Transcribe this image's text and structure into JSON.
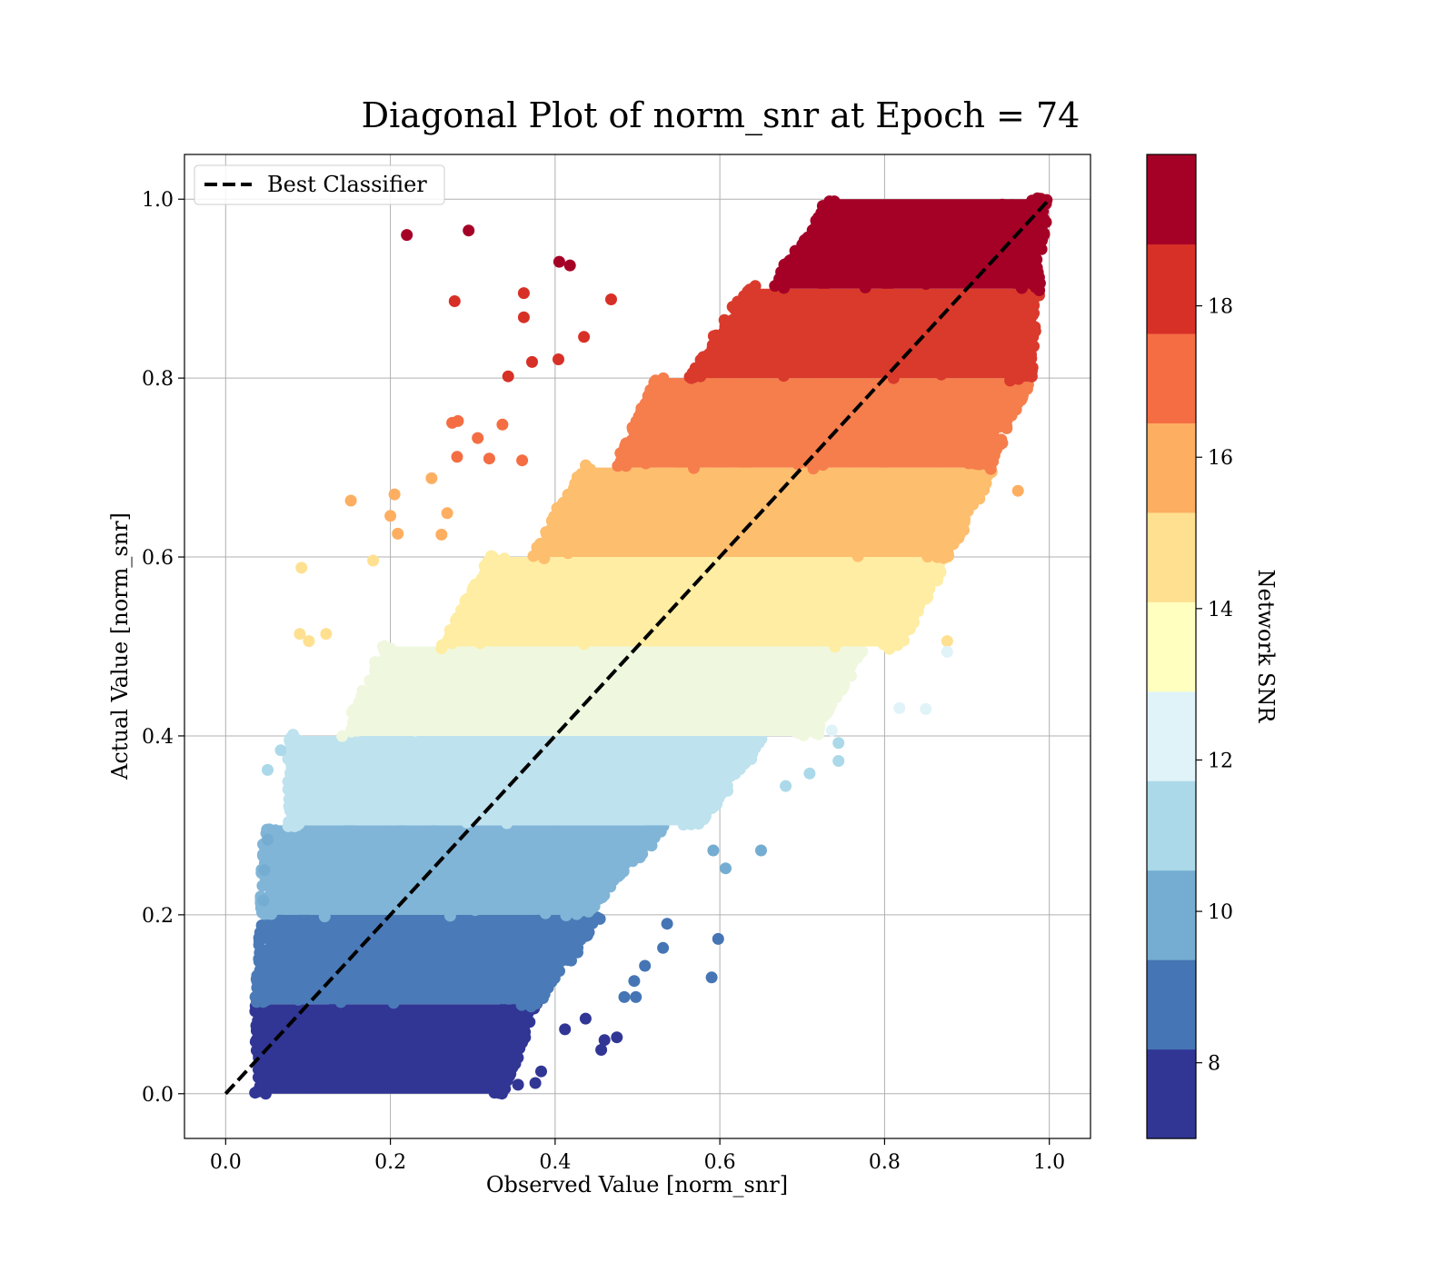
{
  "chart_data": {
    "type": "scatter",
    "title": "Diagonal Plot of norm_snr at Epoch = 74",
    "xlabel": "Observed Value [norm_snr]",
    "ylabel": "Actual Value [norm_snr]",
    "xlim": [
      -0.05,
      1.05
    ],
    "ylim": [
      -0.05,
      1.05
    ],
    "xticks": [
      "0.0",
      "0.2",
      "0.4",
      "0.6",
      "0.8",
      "1.0"
    ],
    "yticks": [
      "0.0",
      "0.2",
      "0.4",
      "0.6",
      "0.8",
      "1.0"
    ],
    "grid": true,
    "legend": {
      "placement": "top-left",
      "entries": [
        {
          "label": "Best Classifier",
          "style": "dashed",
          "color": "#000000"
        }
      ]
    },
    "reference_line": {
      "label": "Best Classifier",
      "x": [
        0.0,
        1.0
      ],
      "y": [
        0.0,
        1.0
      ]
    },
    "colorbar": {
      "label": "Network SNR",
      "range": [
        7,
        20
      ],
      "ticks": [
        "8",
        "10",
        "12",
        "14",
        "16",
        "18"
      ],
      "colors": [
        "#313695",
        "#4575b4",
        "#74add1",
        "#abd9e9",
        "#e0f3f8",
        "#ffffbf",
        "#fee090",
        "#fdae61",
        "#f46d43",
        "#d73027",
        "#a50026"
      ]
    },
    "bands": [
      {
        "snr": 7.6,
        "ymin": 0.0,
        "ymax": 0.1,
        "color": "#313695",
        "x_left": [
          0.045,
          0.045
        ],
        "x_right": [
          0.32,
          0.36
        ]
      },
      {
        "snr": 8.8,
        "ymin": 0.1,
        "ymax": 0.2,
        "color": "#4a7ab7",
        "x_left": [
          0.045,
          0.05
        ],
        "x_right": [
          0.36,
          0.44
        ]
      },
      {
        "snr": 10.0,
        "ymin": 0.2,
        "ymax": 0.3,
        "color": "#80b5d7",
        "x_left": [
          0.05,
          0.055
        ],
        "x_right": [
          0.42,
          0.52
        ]
      },
      {
        "snr": 11.2,
        "ymin": 0.3,
        "ymax": 0.4,
        "color": "#bee2ee",
        "x_left": [
          0.085,
          0.085
        ],
        "x_right": [
          0.56,
          0.64
        ]
      },
      {
        "snr": 12.6,
        "ymin": 0.4,
        "ymax": 0.5,
        "color": "#eff8df",
        "x_left": [
          0.15,
          0.2
        ],
        "x_right": [
          0.7,
          0.76
        ]
      },
      {
        "snr": 13.8,
        "ymin": 0.5,
        "ymax": 0.6,
        "color": "#feeda2",
        "x_left": [
          0.27,
          0.33
        ],
        "x_right": [
          0.8,
          0.86
        ]
      },
      {
        "snr": 15.0,
        "ymin": 0.6,
        "ymax": 0.7,
        "color": "#fdbe6e",
        "x_left": [
          0.38,
          0.44
        ],
        "x_right": [
          0.86,
          0.92
        ]
      },
      {
        "snr": 16.2,
        "ymin": 0.7,
        "ymax": 0.8,
        "color": "#f57e4c",
        "x_left": [
          0.48,
          0.53
        ],
        "x_right": [
          0.91,
          0.96
        ]
      },
      {
        "snr": 17.4,
        "ymin": 0.8,
        "ymax": 0.9,
        "color": "#d93a2c",
        "x_left": [
          0.57,
          0.64
        ],
        "x_right": [
          0.96,
          0.97
        ]
      },
      {
        "snr": 18.8,
        "ymin": 0.9,
        "ymax": 1.0,
        "color": "#a50026",
        "x_left": [
          0.67,
          0.74
        ],
        "x_right": [
          0.97,
          0.98
        ]
      }
    ],
    "outliers": [
      {
        "x": 0.22,
        "y": 0.96,
        "color": "#a50026"
      },
      {
        "x": 0.295,
        "y": 0.965,
        "color": "#a50026"
      },
      {
        "x": 0.405,
        "y": 0.93,
        "color": "#a50026"
      },
      {
        "x": 0.418,
        "y": 0.926,
        "color": "#a50026"
      },
      {
        "x": 0.278,
        "y": 0.886,
        "color": "#d73027"
      },
      {
        "x": 0.362,
        "y": 0.895,
        "color": "#d73027"
      },
      {
        "x": 0.362,
        "y": 0.868,
        "color": "#d73027"
      },
      {
        "x": 0.468,
        "y": 0.888,
        "color": "#d73027"
      },
      {
        "x": 0.435,
        "y": 0.846,
        "color": "#d73027"
      },
      {
        "x": 0.372,
        "y": 0.818,
        "color": "#d73027"
      },
      {
        "x": 0.404,
        "y": 0.821,
        "color": "#d73027"
      },
      {
        "x": 0.343,
        "y": 0.802,
        "color": "#d73027"
      },
      {
        "x": 0.275,
        "y": 0.75,
        "color": "#f46d43"
      },
      {
        "x": 0.282,
        "y": 0.752,
        "color": "#f46d43"
      },
      {
        "x": 0.306,
        "y": 0.733,
        "color": "#f46d43"
      },
      {
        "x": 0.281,
        "y": 0.712,
        "color": "#f46d43"
      },
      {
        "x": 0.32,
        "y": 0.71,
        "color": "#f46d43"
      },
      {
        "x": 0.336,
        "y": 0.748,
        "color": "#f46d43"
      },
      {
        "x": 0.36,
        "y": 0.708,
        "color": "#f46d43"
      },
      {
        "x": 0.152,
        "y": 0.663,
        "color": "#fdae61"
      },
      {
        "x": 0.205,
        "y": 0.67,
        "color": "#fdae61"
      },
      {
        "x": 0.25,
        "y": 0.688,
        "color": "#fdae61"
      },
      {
        "x": 0.2,
        "y": 0.646,
        "color": "#fdae61"
      },
      {
        "x": 0.269,
        "y": 0.649,
        "color": "#fdae61"
      },
      {
        "x": 0.209,
        "y": 0.626,
        "color": "#fdae61"
      },
      {
        "x": 0.262,
        "y": 0.625,
        "color": "#fdae61"
      },
      {
        "x": 0.962,
        "y": 0.674,
        "color": "#fdae61"
      },
      {
        "x": 0.092,
        "y": 0.588,
        "color": "#fee090"
      },
      {
        "x": 0.179,
        "y": 0.596,
        "color": "#fee090"
      },
      {
        "x": 0.09,
        "y": 0.514,
        "color": "#fee090"
      },
      {
        "x": 0.101,
        "y": 0.506,
        "color": "#fee090"
      },
      {
        "x": 0.122,
        "y": 0.514,
        "color": "#fee090"
      },
      {
        "x": 0.876,
        "y": 0.506,
        "color": "#fee090"
      },
      {
        "x": 0.876,
        "y": 0.494,
        "color": "#e0f3f8"
      },
      {
        "x": 0.818,
        "y": 0.431,
        "color": "#e0f3f8"
      },
      {
        "x": 0.85,
        "y": 0.43,
        "color": "#e0f3f8"
      },
      {
        "x": 0.736,
        "y": 0.406,
        "color": "#e0f3f8"
      },
      {
        "x": 0.744,
        "y": 0.392,
        "color": "#abd9e9"
      },
      {
        "x": 0.709,
        "y": 0.358,
        "color": "#abd9e9"
      },
      {
        "x": 0.744,
        "y": 0.372,
        "color": "#abd9e9"
      },
      {
        "x": 0.68,
        "y": 0.344,
        "color": "#abd9e9"
      },
      {
        "x": 0.051,
        "y": 0.362,
        "color": "#abd9e9"
      },
      {
        "x": 0.067,
        "y": 0.384,
        "color": "#abd9e9"
      },
      {
        "x": 0.65,
        "y": 0.272,
        "color": "#74add1"
      },
      {
        "x": 0.607,
        "y": 0.252,
        "color": "#74add1"
      },
      {
        "x": 0.592,
        "y": 0.272,
        "color": "#74add1"
      },
      {
        "x": 0.051,
        "y": 0.284,
        "color": "#74add1"
      },
      {
        "x": 0.047,
        "y": 0.25,
        "color": "#74add1"
      },
      {
        "x": 0.046,
        "y": 0.216,
        "color": "#74add1"
      },
      {
        "x": 0.598,
        "y": 0.173,
        "color": "#4575b4"
      },
      {
        "x": 0.59,
        "y": 0.13,
        "color": "#4575b4"
      },
      {
        "x": 0.531,
        "y": 0.163,
        "color": "#4575b4"
      },
      {
        "x": 0.536,
        "y": 0.19,
        "color": "#4575b4"
      },
      {
        "x": 0.509,
        "y": 0.143,
        "color": "#4575b4"
      },
      {
        "x": 0.496,
        "y": 0.126,
        "color": "#4575b4"
      },
      {
        "x": 0.484,
        "y": 0.108,
        "color": "#4575b4"
      },
      {
        "x": 0.498,
        "y": 0.108,
        "color": "#4575b4"
      },
      {
        "x": 0.475,
        "y": 0.063,
        "color": "#313695"
      },
      {
        "x": 0.46,
        "y": 0.06,
        "color": "#313695"
      },
      {
        "x": 0.456,
        "y": 0.049,
        "color": "#313695"
      },
      {
        "x": 0.437,
        "y": 0.084,
        "color": "#313695"
      },
      {
        "x": 0.412,
        "y": 0.072,
        "color": "#313695"
      },
      {
        "x": 0.383,
        "y": 0.025,
        "color": "#313695"
      },
      {
        "x": 0.376,
        "y": 0.012,
        "color": "#313695"
      },
      {
        "x": 0.355,
        "y": 0.01,
        "color": "#313695"
      },
      {
        "x": 0.296,
        "y": 0.018,
        "color": "#313695"
      },
      {
        "x": 0.315,
        "y": 0.01,
        "color": "#313695"
      }
    ]
  }
}
